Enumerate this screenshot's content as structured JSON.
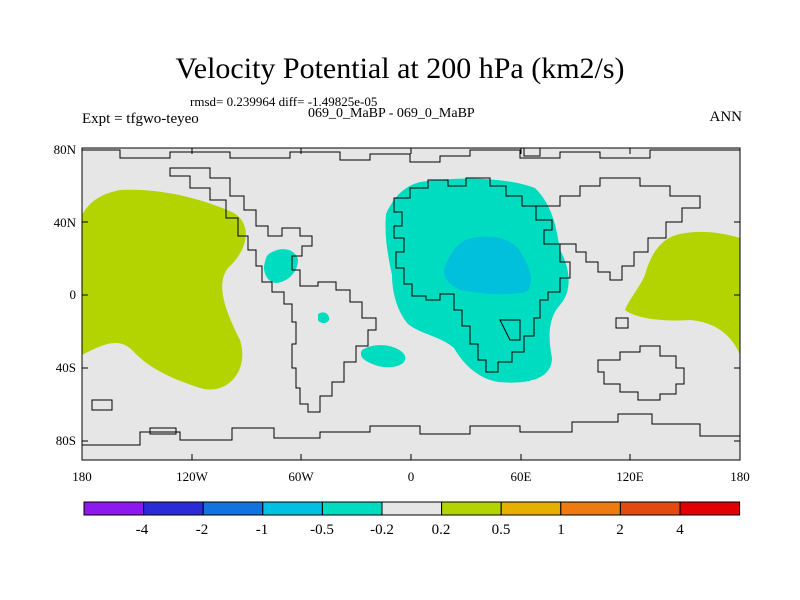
{
  "header": {
    "title": "Velocity Potential at 200 hPa (km2/s)",
    "stats": "rmsd= 0.239964 diff= -1.49825e-05",
    "left_subtitle": "Expt = tfgwo-teyeo",
    "center_subtitle": "069_0_MaBP - 069_0_MaBP",
    "right_subtitle": "ANN"
  },
  "map": {
    "y_ticks": [
      "80N",
      "40N",
      "0",
      "40S",
      "80S"
    ],
    "x_ticks": [
      "180",
      "120W",
      "60W",
      "0",
      "60E",
      "120E",
      "180"
    ],
    "regions": [
      {
        "name": "eastern-pacific-positive",
        "level": "0.2 to 0.5",
        "color": "#b4d400"
      },
      {
        "name": "western-pacific-positive",
        "level": "0.2 to 0.5",
        "color": "#b4d400"
      },
      {
        "name": "africa-negative",
        "level": "-0.5 to -0.2",
        "color": "#00dcc0"
      },
      {
        "name": "africa-core-negative",
        "level": "-1 to -0.5",
        "color": "#00c0dc"
      },
      {
        "name": "caribbean-negative",
        "level": "-0.5 to -0.2",
        "color": "#00dcc0"
      },
      {
        "name": "south-atlantic-negative",
        "level": "-0.5 to -0.2",
        "color": "#00dcc0"
      }
    ],
    "background_color": "#e6e6e6"
  },
  "colorbar": {
    "colors": [
      "#8c1aef",
      "#2b2bd8",
      "#1173e2",
      "#00c0e4",
      "#00dcc0",
      "#e6e6e6",
      "#b4d400",
      "#e6b000",
      "#ee7a10",
      "#e34a10",
      "#e00000"
    ],
    "labels": [
      "-4",
      "-2",
      "-1",
      "-0.5",
      "-0.2",
      "0.2",
      "0.5",
      "1",
      "2",
      "4"
    ]
  }
}
